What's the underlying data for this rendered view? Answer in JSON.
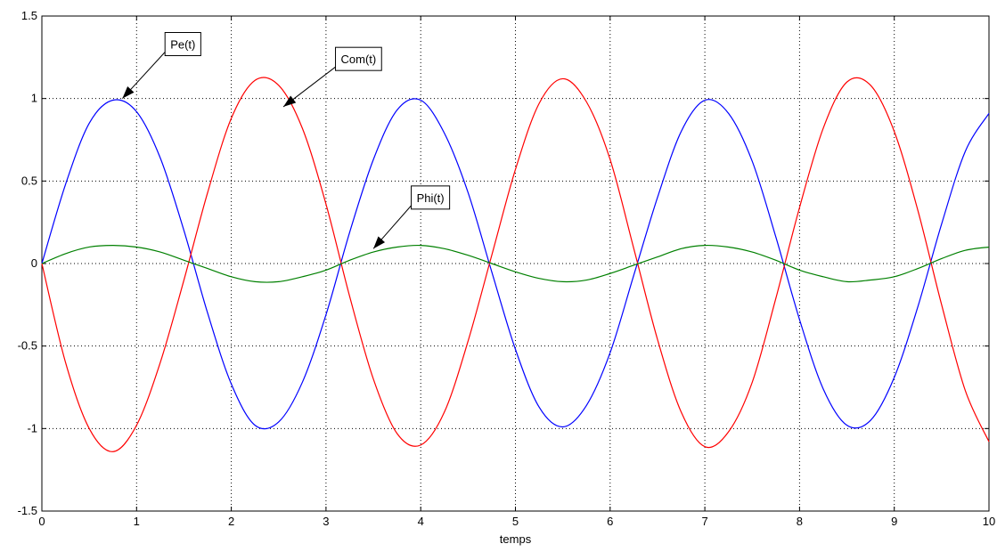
{
  "chart_data": {
    "type": "line",
    "title": "",
    "xlabel": "temps",
    "ylabel": "",
    "xlim": [
      0,
      10
    ],
    "ylim": [
      -1.5,
      1.5
    ],
    "grid": true,
    "xticks": [
      "0",
      "1",
      "2",
      "3",
      "4",
      "5",
      "6",
      "7",
      "8",
      "9",
      "10"
    ],
    "yticks": [
      "1.5",
      "1",
      "0.5",
      "0",
      "-0.5",
      "-1",
      "-1.5"
    ],
    "x": [
      0,
      0.25,
      0.5,
      0.75,
      1,
      1.25,
      1.5,
      1.75,
      2,
      2.25,
      2.5,
      2.75,
      3,
      3.25,
      3.5,
      3.75,
      4,
      4.25,
      4.5,
      4.75,
      5,
      5.25,
      5.5,
      5.75,
      6,
      6.25,
      6.5,
      6.75,
      7,
      7.25,
      7.5,
      7.75,
      8,
      8.25,
      8.5,
      8.75,
      9,
      9.25,
      9.5,
      9.75,
      10
    ],
    "series": [
      {
        "color": "#0000ff",
        "values": [
          0,
          0.48,
          0.85,
          0.99,
          0.92,
          0.64,
          0.2,
          -0.3,
          -0.73,
          -0.98,
          -0.96,
          -0.72,
          -0.31,
          0.19,
          0.63,
          0.93,
          0.99,
          0.79,
          0.43,
          -0.05,
          -0.52,
          -0.87,
          -0.99,
          -0.86,
          -0.54,
          -0.07,
          0.4,
          0.8,
          0.99,
          0.91,
          0.62,
          0.16,
          -0.34,
          -0.76,
          -0.98,
          -0.95,
          -0.69,
          -0.26,
          0.24,
          0.68,
          0.91
        ]
      },
      {
        "color": "#ff0000",
        "values": [
          0,
          -0.6,
          -1.0,
          -1.14,
          -0.98,
          -0.6,
          -0.1,
          0.43,
          0.88,
          1.11,
          1.08,
          0.82,
          0.36,
          -0.2,
          -0.7,
          -1.03,
          -1.1,
          -0.9,
          -0.47,
          0.05,
          0.57,
          0.97,
          1.12,
          0.98,
          0.63,
          0.09,
          -0.46,
          -0.9,
          -1.11,
          -1.02,
          -0.72,
          -0.21,
          0.34,
          0.82,
          1.1,
          1.08,
          0.8,
          0.32,
          -0.25,
          -0.77,
          -1.08
        ]
      },
      {
        "color": "#008000",
        "values": [
          0,
          0.06,
          0.1,
          0.11,
          0.1,
          0.07,
          0.02,
          -0.03,
          -0.08,
          -0.11,
          -0.11,
          -0.08,
          -0.04,
          0.02,
          0.07,
          0.1,
          0.11,
          0.09,
          0.05,
          0,
          -0.05,
          -0.09,
          -0.11,
          -0.1,
          -0.06,
          -0.01,
          0.04,
          0.09,
          0.11,
          0.1,
          0.07,
          0.02,
          -0.04,
          -0.08,
          -0.11,
          -0.1,
          -0.08,
          -0.03,
          0.03,
          0.08,
          0.1
        ]
      }
    ],
    "annotations": [
      {
        "text": "Pe(t)",
        "point": [
          0.85,
          1.0
        ],
        "box_at": [
          1.3,
          1.33
        ]
      },
      {
        "text": "Com(t)",
        "point": [
          2.55,
          0.95
        ],
        "box_at": [
          3.1,
          1.24
        ]
      },
      {
        "text": "Phi(t)",
        "point": [
          3.5,
          0.09
        ],
        "box_at": [
          3.9,
          0.4
        ]
      }
    ]
  }
}
